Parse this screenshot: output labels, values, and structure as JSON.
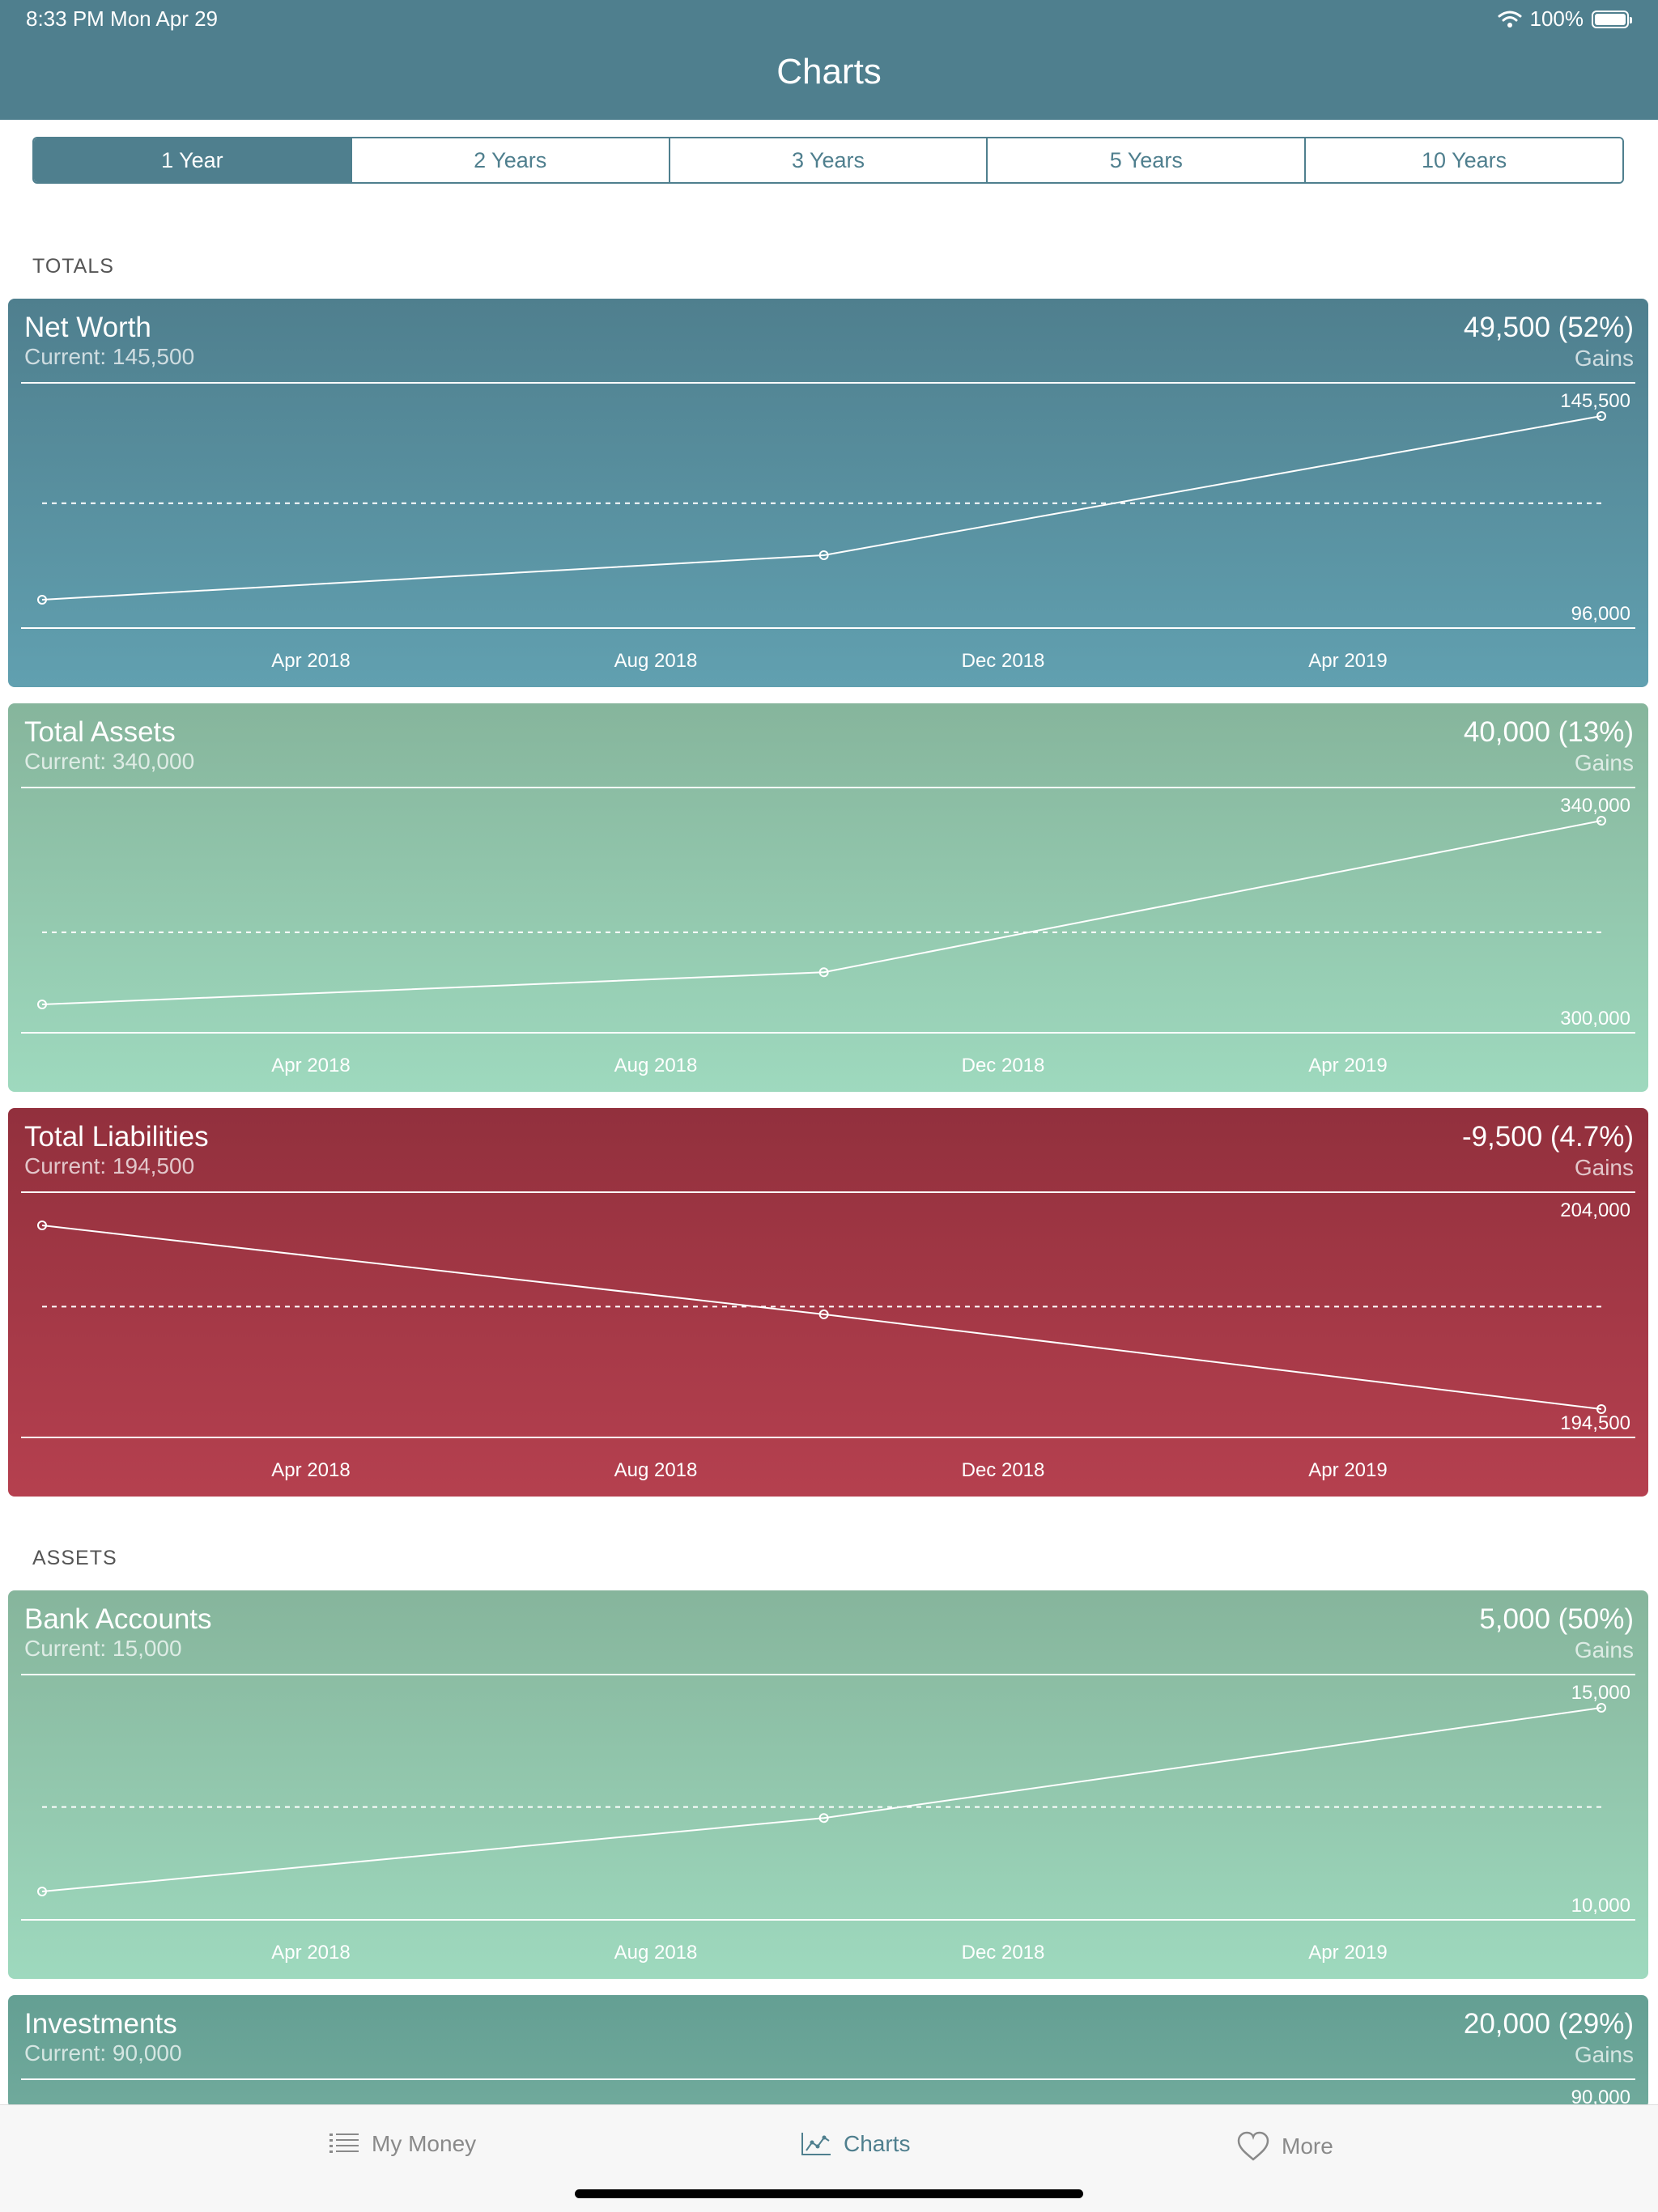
{
  "status_bar": {
    "time": "8:33 PM   Mon Apr 29",
    "battery": "100%"
  },
  "nav": {
    "title": "Charts"
  },
  "segments": [
    {
      "label": "1 Year",
      "active": true
    },
    {
      "label": "2 Years",
      "active": false
    },
    {
      "label": "3 Years",
      "active": false
    },
    {
      "label": "5 Years",
      "active": false
    },
    {
      "label": "10 Years",
      "active": false
    }
  ],
  "sections": {
    "totals": "TOTALS",
    "assets": "ASSETS"
  },
  "x_ticks": [
    "Apr 2018",
    "Aug 2018",
    "Dec 2018",
    "Apr 2019"
  ],
  "cards": [
    {
      "title": "Net Worth",
      "current": "Current: 145,500",
      "gain": "49,500 (52%)",
      "gain_label": "Gains",
      "y_max_label": "145,500",
      "y_min_label": "96,000"
    },
    {
      "title": "Total Assets",
      "current": "Current: 340,000",
      "gain": "40,000 (13%)",
      "gain_label": "Gains",
      "y_max_label": "340,000",
      "y_min_label": "300,000"
    },
    {
      "title": "Total Liabilities",
      "current": "Current: 194,500",
      "gain": "-9,500 (4.7%)",
      "gain_label": "Gains",
      "y_max_label": "204,000",
      "y_min_label": "194,500"
    },
    {
      "title": "Bank Accounts",
      "current": "Current: 15,000",
      "gain": "5,000 (50%)",
      "gain_label": "Gains",
      "y_max_label": "15,000",
      "y_min_label": "10,000"
    },
    {
      "title": "Investments",
      "current": "Current: 90,000",
      "gain": "20,000 (29%)",
      "gain_label": "Gains",
      "y_max_label": "90,000"
    }
  ],
  "chart_data": [
    {
      "type": "line",
      "title": "Net Worth",
      "x": [
        "Apr 2018",
        "Aug 2018",
        "Dec 2018",
        "Apr 2019"
      ],
      "points": [
        {
          "x": "2018-04-29",
          "y": 96000
        },
        {
          "x": "2018-10-29",
          "y": 108000
        },
        {
          "x": "2019-04-29",
          "y": 145500
        }
      ],
      "ylim": [
        96000,
        145500
      ],
      "avg_line": 122000,
      "grid": false
    },
    {
      "type": "line",
      "title": "Total Assets",
      "x": [
        "Apr 2018",
        "Aug 2018",
        "Dec 2018",
        "Apr 2019"
      ],
      "points": [
        {
          "x": "2018-04-29",
          "y": 300000
        },
        {
          "x": "2018-10-29",
          "y": 307000
        },
        {
          "x": "2019-04-29",
          "y": 340000
        }
      ],
      "ylim": [
        300000,
        340000
      ],
      "avg_line": 315700,
      "grid": false
    },
    {
      "type": "line",
      "title": "Total Liabilities",
      "x": [
        "Apr 2018",
        "Aug 2018",
        "Dec 2018",
        "Apr 2019"
      ],
      "points": [
        {
          "x": "2018-04-29",
          "y": 204000
        },
        {
          "x": "2018-10-29",
          "y": 199400
        },
        {
          "x": "2019-04-29",
          "y": 194500
        }
      ],
      "ylim": [
        194500,
        204000
      ],
      "avg_line": 199800,
      "grid": false
    },
    {
      "type": "line",
      "title": "Bank Accounts",
      "x": [
        "Apr 2018",
        "Aug 2018",
        "Dec 2018",
        "Apr 2019"
      ],
      "points": [
        {
          "x": "2018-04-29",
          "y": 10000
        },
        {
          "x": "2018-10-29",
          "y": 12000
        },
        {
          "x": "2019-04-29",
          "y": 15000
        }
      ],
      "ylim": [
        10000,
        15000
      ],
      "avg_line": 12300,
      "grid": false
    }
  ],
  "tabs": [
    {
      "label": "My Money",
      "icon": "list-icon"
    },
    {
      "label": "Charts",
      "icon": "chart-icon",
      "active": true
    },
    {
      "label": "More",
      "icon": "heart-icon"
    }
  ]
}
